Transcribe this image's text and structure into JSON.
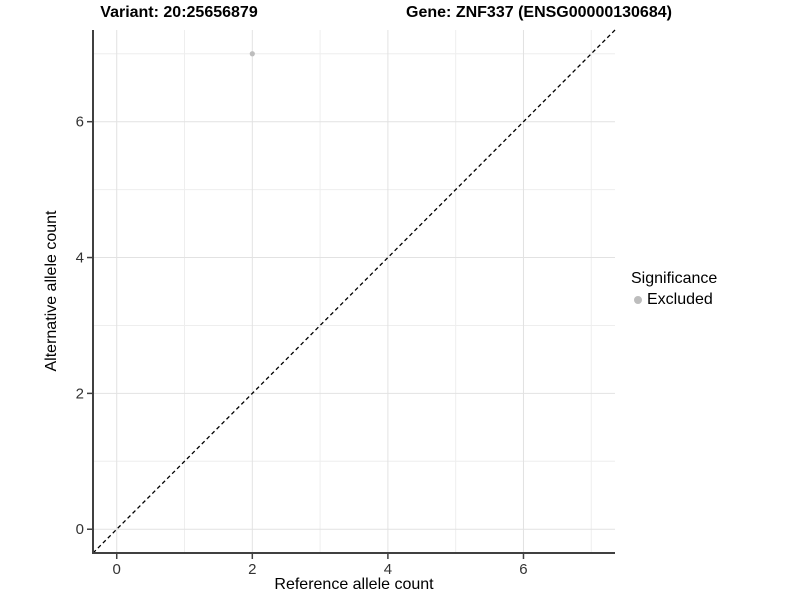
{
  "header": {
    "variant_title": "Variant: 20:25656879",
    "gene_title": "Gene: ZNF337 (ENSG00000130684)"
  },
  "chart_data": {
    "type": "scatter",
    "title_left": "Variant: 20:25656879",
    "title_right": "Gene: ZNF337 (ENSG00000130684)",
    "xlabel": "Reference allele count",
    "ylabel": "Alternative allele count",
    "xlim": [
      -0.35,
      7.35
    ],
    "ylim": [
      -0.35,
      7.35
    ],
    "x_ticks": [
      0,
      2,
      4,
      6
    ],
    "y_ticks": [
      0,
      2,
      4,
      6
    ],
    "x_minor_gridlines": [
      1,
      3,
      5,
      7
    ],
    "y_minor_gridlines": [
      1,
      3,
      5,
      7
    ],
    "grid": true,
    "points": [
      {
        "x": 2,
        "y": 7,
        "significance": "Excluded"
      }
    ],
    "reference_line": {
      "type": "identity",
      "slope": 1,
      "intercept": 0,
      "style": "dashed",
      "color": "#000000"
    },
    "legend": {
      "position": "right",
      "title": "Significance",
      "entries": [
        {
          "label": "Excluded",
          "color": "#bdbdbd"
        }
      ]
    }
  },
  "colors": {
    "panel_background": "#ffffff",
    "major_gridline": "#e2e2e2",
    "minor_gridline": "#eeeeee",
    "axis_line": "#404040",
    "tick_label": "#333333",
    "point_excluded": "#bdbdbd"
  }
}
